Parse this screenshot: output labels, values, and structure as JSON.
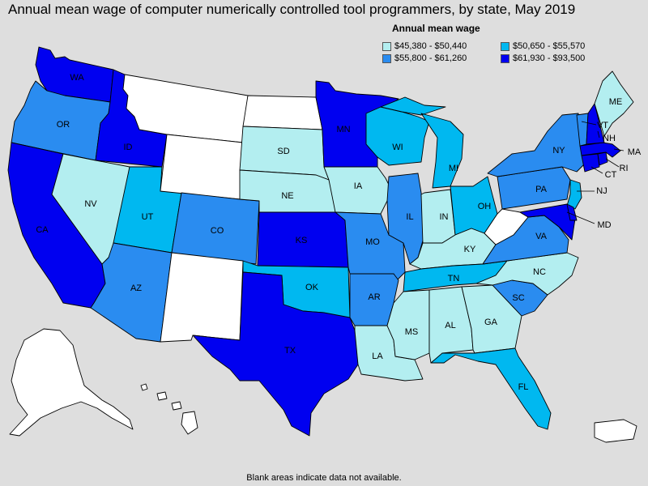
{
  "title": "Annual mean wage of computer numerically controlled tool programmers, by state, May 2019",
  "legend": {
    "title": "Annual mean wage",
    "items": [
      {
        "label": "$45,380 - $50,440",
        "color": "#b3eef0"
      },
      {
        "label": "$50,650 - $55,570",
        "color": "#00b8f0"
      },
      {
        "label": "$55,800 - $61,260",
        "color": "#2a8cf0"
      },
      {
        "label": "$61,930 - $93,500",
        "color": "#0000f0"
      }
    ]
  },
  "footnote": "Blank areas indicate data not available.",
  "colors": {
    "no_data": "#ffffff",
    "background": "#dedede"
  },
  "states": {
    "WA": {
      "label": "WA",
      "class": 3
    },
    "OR": {
      "label": "OR",
      "class": 2
    },
    "CA": {
      "label": "CA",
      "class": 3
    },
    "ID": {
      "label": "ID",
      "class": 3
    },
    "NV": {
      "label": "NV",
      "class": 0
    },
    "UT": {
      "label": "UT",
      "class": 1
    },
    "AZ": {
      "label": "AZ",
      "class": 2
    },
    "MT": {
      "label": "",
      "class": -1
    },
    "WY": {
      "label": "",
      "class": -1
    },
    "CO": {
      "label": "CO",
      "class": 2
    },
    "NM": {
      "label": "",
      "class": -1
    },
    "ND": {
      "label": "",
      "class": -1
    },
    "SD": {
      "label": "SD",
      "class": 0
    },
    "NE": {
      "label": "NE",
      "class": 0
    },
    "KS": {
      "label": "KS",
      "class": 3
    },
    "OK": {
      "label": "OK",
      "class": 1
    },
    "TX": {
      "label": "TX",
      "class": 3
    },
    "MN": {
      "label": "MN",
      "class": 3
    },
    "IA": {
      "label": "IA",
      "class": 0
    },
    "MO": {
      "label": "MO",
      "class": 2
    },
    "AR": {
      "label": "AR",
      "class": 2
    },
    "LA": {
      "label": "LA",
      "class": 0
    },
    "WI": {
      "label": "WI",
      "class": 1
    },
    "IL": {
      "label": "IL",
      "class": 2
    },
    "MI": {
      "label": "MI",
      "class": 1
    },
    "IN": {
      "label": "IN",
      "class": 0
    },
    "OH": {
      "label": "OH",
      "class": 1
    },
    "KY": {
      "label": "KY",
      "class": 0
    },
    "TN": {
      "label": "TN",
      "class": 1
    },
    "MS": {
      "label": "MS",
      "class": 0
    },
    "AL": {
      "label": "AL",
      "class": 0
    },
    "GA": {
      "label": "GA",
      "class": 0
    },
    "FL": {
      "label": "FL",
      "class": 1
    },
    "SC": {
      "label": "SC",
      "class": 2
    },
    "NC": {
      "label": "NC",
      "class": 0
    },
    "VA": {
      "label": "VA",
      "class": 2
    },
    "WV": {
      "label": "",
      "class": -1
    },
    "PA": {
      "label": "PA",
      "class": 2
    },
    "NY": {
      "label": "NY",
      "class": 2
    },
    "NJ": {
      "label": "NJ",
      "class": 1
    },
    "MD": {
      "label": "MD",
      "class": 3
    },
    "DE": {
      "label": "",
      "class": 3
    },
    "CT": {
      "label": "CT",
      "class": 3
    },
    "RI": {
      "label": "RI",
      "class": 3
    },
    "MA": {
      "label": "MA",
      "class": 3
    },
    "VT": {
      "label": "VT",
      "class": 2
    },
    "NH": {
      "label": "NH",
      "class": 3
    },
    "ME": {
      "label": "ME",
      "class": 0
    },
    "AK": {
      "label": "",
      "class": -1
    },
    "HI": {
      "label": "",
      "class": -1
    },
    "PR": {
      "label": "",
      "class": -1
    }
  }
}
